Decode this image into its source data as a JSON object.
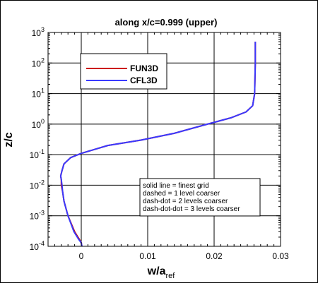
{
  "chart_data": {
    "type": "line",
    "title": "along x/c=0.999 (upper)",
    "xlabel_main": "w/a",
    "xlabel_sub": "ref",
    "ylabel": "z/c",
    "xscale": "linear",
    "yscale": "log",
    "xlim": [
      -0.005,
      0.03
    ],
    "ylim": [
      0.0001,
      1000
    ],
    "grid": true,
    "xticks": [
      {
        "value": 0,
        "label": "0"
      },
      {
        "value": 0.01,
        "label": "0.01"
      },
      {
        "value": 0.02,
        "label": "0.02"
      },
      {
        "value": 0.03,
        "label": "0.03"
      }
    ],
    "yticks": [
      {
        "value": 0.0001,
        "base": "10",
        "exp": "-4"
      },
      {
        "value": 0.001,
        "base": "10",
        "exp": "-3"
      },
      {
        "value": 0.01,
        "base": "10",
        "exp": "-2"
      },
      {
        "value": 0.1,
        "base": "10",
        "exp": "-1"
      },
      {
        "value": 1,
        "base": "10",
        "exp": "0"
      },
      {
        "value": 10,
        "base": "10",
        "exp": "1"
      },
      {
        "value": 100,
        "base": "10",
        "exp": "2"
      },
      {
        "value": 1000,
        "base": "10",
        "exp": "3"
      }
    ],
    "legend": {
      "position": "top-left"
    },
    "annotation": [
      "solid line = finest grid",
      "dashed = 1 level coarser",
      "dash-dot = 2 levels coarser",
      "dash-dot-dot = 3 levels coarser"
    ],
    "series": [
      {
        "name": "FUN3D",
        "color": "#cc0000",
        "x": [
          0.0001,
          0.0,
          -0.0003,
          -0.001,
          -0.002,
          -0.0026,
          -0.0028,
          -0.003,
          -0.003,
          -0.0031,
          -0.0029,
          -0.0026,
          -0.0016,
          0.0,
          0.004,
          0.009,
          0.014,
          0.019,
          0.0225,
          0.0248,
          0.0258,
          0.0261,
          0.0262,
          0.0262
        ],
        "y": [
          0.0001,
          0.00013,
          0.00017,
          0.0003,
          0.001,
          0.003,
          0.006,
          0.01,
          0.015,
          0.02,
          0.03,
          0.05,
          0.08,
          0.11,
          0.2,
          0.3,
          0.5,
          1.0,
          1.6,
          2.5,
          4,
          10,
          100,
          500
        ]
      },
      {
        "name": "CFL3D",
        "color": "#3a3aff",
        "x": [
          0.0001,
          0.0,
          -0.0004,
          -0.0011,
          -0.002,
          -0.0026,
          -0.0028,
          -0.0029,
          -0.003,
          -0.0031,
          -0.0029,
          -0.0026,
          -0.0016,
          0.0,
          0.004,
          0.009,
          0.014,
          0.019,
          0.0225,
          0.0248,
          0.0258,
          0.0261,
          0.0262,
          0.0262
        ],
        "y": [
          0.0001,
          0.00013,
          0.00017,
          0.0003,
          0.001,
          0.003,
          0.006,
          0.01,
          0.015,
          0.02,
          0.03,
          0.05,
          0.08,
          0.11,
          0.2,
          0.3,
          0.5,
          1.0,
          1.6,
          2.5,
          4,
          10,
          100,
          500
        ]
      }
    ]
  }
}
